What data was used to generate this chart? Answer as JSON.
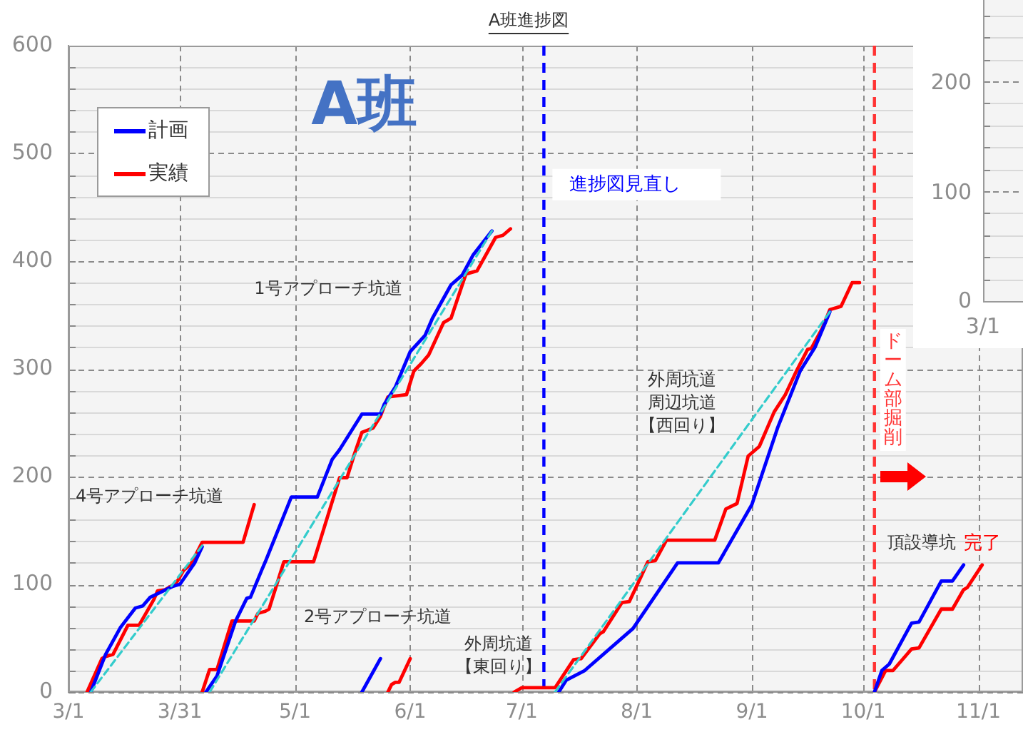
{
  "chart_data": [
    {
      "type": "line",
      "title": "A班進捗図",
      "subtitle": "A班",
      "xlim": [
        "--03-01",
        "--11-13"
      ],
      "xticks": [
        {
          "value": "--03-01",
          "label": "3/1"
        },
        {
          "value": "--03-31",
          "label": "3/31"
        },
        {
          "value": "--05-01",
          "label": "5/1"
        },
        {
          "value": "--06-01",
          "label": "6/1"
        },
        {
          "value": "--07-01",
          "label": "7/1"
        },
        {
          "value": "--08-01",
          "label": "8/1"
        },
        {
          "value": "--09-01",
          "label": "9/1"
        },
        {
          "value": "--10-01",
          "label": "10/1"
        },
        {
          "value": "--11-01",
          "label": "11/1"
        }
      ],
      "ylim": [
        0,
        600
      ],
      "yticks": [
        0,
        {
          "value": 20,
          "label": null
        },
        {
          "value": 40,
          "label": null
        },
        {
          "value": 60,
          "label": null
        },
        {
          "value": 80,
          "label": null
        },
        100,
        {
          "value": 120,
          "label": null
        },
        {
          "value": 140,
          "label": null
        },
        {
          "value": 160,
          "label": null
        },
        {
          "value": 180,
          "label": null
        },
        200,
        {
          "value": 220,
          "label": null
        },
        {
          "value": 240,
          "label": null
        },
        {
          "value": 260,
          "label": null
        },
        {
          "value": 280,
          "label": null
        },
        300,
        {
          "value": 320,
          "label": null
        },
        {
          "value": 340,
          "label": null
        },
        {
          "value": 360,
          "label": null
        },
        {
          "value": 380,
          "label": null
        },
        400,
        {
          "value": 420,
          "label": null
        },
        {
          "value": 440,
          "label": null
        },
        {
          "value": 460,
          "label": null
        },
        {
          "value": 480,
          "label": null
        },
        500,
        {
          "value": 520,
          "label": null
        },
        {
          "value": 540,
          "label": null
        },
        {
          "value": 560,
          "label": null
        },
        {
          "value": 580,
          "label": null
        },
        600
      ],
      "grid": true,
      "legend": "top left",
      "marker": "none",
      "series": [
        {
          "name": "計画",
          "color": "#0000ff",
          "x": [
            "--03-07",
            "--03-11",
            "--03-15",
            "--03-19",
            "--03-21",
            "--03-23",
            "--03-26",
            "--03-29",
            "--03-31",
            "--04-02",
            "--04-04",
            "--04-06",
            null,
            "--04-07",
            "--04-10",
            "--04-15",
            "--04-18",
            "--04-19",
            "--04-22",
            "--04-23",
            "--04-30",
            "--05-07",
            "--05-11",
            "--05-13",
            "--05-19",
            "--05-24",
            "--05-25",
            "--05-28",
            "--06-01",
            "--06-05",
            "--06-07",
            "--06-12",
            "--06-15",
            "--06-18",
            "--06-23",
            null,
            "--05-19",
            "--05-24",
            null,
            "--07-11",
            "--07-13",
            "--07-18",
            "--07-31",
            "--08-12",
            "--08-23",
            "--09-01",
            "--09-08",
            "--09-14",
            "--09-18",
            "--09-22",
            null,
            "--10-04",
            "--10-06",
            "--10-08",
            "--10-14",
            "--10-16",
            "--10-22",
            "--10-25",
            "--10-28"
          ],
          "values": [
            0,
            35,
            60,
            78,
            80,
            88,
            93,
            98,
            100,
            110,
            120,
            135,
            null,
            0,
            15,
            66,
            87,
            88,
            113,
            121,
            181,
            181,
            216,
            225,
            258,
            258,
            267,
            283,
            316,
            331,
            347,
            378,
            387,
            406,
            428,
            null,
            0,
            31,
            null,
            0,
            11,
            20,
            59,
            120,
            120,
            174,
            246,
            298,
            320,
            353,
            null,
            0,
            20,
            26,
            64,
            65,
            103,
            103,
            118
          ]
        },
        {
          "name": "実績",
          "color": "#ff0000",
          "x": [
            "--03-06",
            "--03-10",
            "--03-11",
            "--03-13",
            "--03-17",
            "--03-20",
            "--03-24",
            "--03-25",
            "--03-27",
            "--03-30",
            "--04-01",
            "--04-03",
            "--04-06",
            "--04-17",
            "--04-20",
            null,
            "--04-06",
            "--04-08",
            "--04-10",
            "--04-14",
            "--04-20",
            "--04-21",
            "--04-23",
            "--04-24",
            "--04-28",
            "--05-06",
            "--05-13",
            "--05-15",
            "--05-17",
            "--05-19",
            "--05-22",
            "--05-24",
            "--05-26",
            "--05-31",
            "--06-02",
            "--06-04",
            "--06-06",
            "--06-10",
            "--06-12",
            "--06-16",
            "--06-19",
            "--06-24",
            "--06-26",
            "--06-28",
            null,
            "--05-26",
            "--05-27",
            "--05-28",
            "--05-29",
            "--06-01",
            null,
            "--06-29",
            "--07-01",
            "--07-10",
            "--07-15",
            "--07-17",
            "--07-22",
            "--07-23",
            "--07-28",
            "--07-30",
            "--08-02",
            "--08-04",
            "--08-06",
            "--08-09",
            "--08-22",
            "--08-25",
            "--08-28",
            "--08-31",
            "--09-03",
            "--09-07",
            "--09-10",
            "--09-13",
            "--09-16",
            "--09-17",
            "--09-20",
            "--09-22",
            "--09-25",
            "--09-28",
            "--09-30",
            null,
            "--10-04",
            "--10-07",
            "--10-09",
            "--10-14",
            "--10-16",
            "--10-22",
            "--10-25",
            "--10-28",
            "--10-29",
            "--11-02"
          ],
          "values": [
            0,
            31,
            33,
            35,
            62,
            62,
            86,
            94,
            95,
            101,
            113,
            119,
            139,
            139,
            174,
            null,
            0,
            21,
            21,
            66,
            66,
            73,
            75,
            77,
            121,
            121,
            199,
            199,
            221,
            241,
            245,
            256,
            274,
            276,
            298,
            305,
            313,
            343,
            347,
            388,
            391,
            422,
            424,
            430,
            null,
            0,
            7,
            9,
            9,
            31,
            null,
            0,
            4,
            4,
            30,
            31,
            54,
            56,
            83,
            84,
            106,
            121,
            122,
            141,
            141,
            170,
            175,
            219,
            228,
            260,
            276,
            298,
            318,
            319,
            338,
            355,
            358,
            380,
            380,
            null,
            0,
            20,
            20,
            40,
            41,
            77,
            77,
            95,
            97,
            118
          ],
          "value_labels": [
            null,
            null,
            null,
            null,
            null,
            null,
            null,
            null,
            null,
            null,
            null,
            null,
            null,
            null,
            null,
            null,
            null,
            null,
            null,
            null,
            null,
            null,
            null,
            null,
            null,
            null,
            null,
            null,
            null,
            null,
            null,
            null,
            null,
            null,
            null,
            null,
            null,
            null,
            null,
            null,
            null,
            null,
            null,
            null,
            null,
            null,
            null,
            null,
            null,
            null,
            null,
            null,
            null,
            null,
            null,
            null,
            null,
            null,
            null,
            null,
            null,
            null,
            null,
            null,
            null,
            null,
            null,
            null,
            null,
            null,
            null,
            null,
            null,
            null,
            null,
            null,
            null,
            null,
            null,
            null,
            null,
            null,
            null,
            null,
            null,
            null,
            null,
            null,
            null,
            "完了"
          ]
        },
        {
          "color": "#33cccc",
          "line_style": "dashed",
          "x": [
            "--03-07",
            "--04-06",
            null,
            "--04-08",
            "--06-23",
            null,
            "--07-10",
            "--09-22"
          ],
          "values": [
            0,
            136,
            null,
            0,
            428,
            null,
            0,
            353
          ]
        }
      ],
      "ref_lines": [
        {
          "axis": "x",
          "value": "--07-07",
          "label": "進捗図見直し",
          "color": "#0000ff",
          "line_style": "dashed"
        },
        {
          "axis": "x",
          "value": "--10-04",
          "label": "ドーム部掘削",
          "color": "#ff3333",
          "line_style": "dashed"
        }
      ],
      "annotations": [
        "4号アプローチ坑道",
        "1号アプローチ坑道",
        "2号アプローチ坑道",
        "外周坑道【東回り】",
        "外周坑道周辺坑道【西回り】",
        "頂設導坑"
      ]
    },
    {
      "type": "other",
      "annotations": [
        "200",
        "100",
        "0",
        "3/1"
      ]
    }
  ]
}
